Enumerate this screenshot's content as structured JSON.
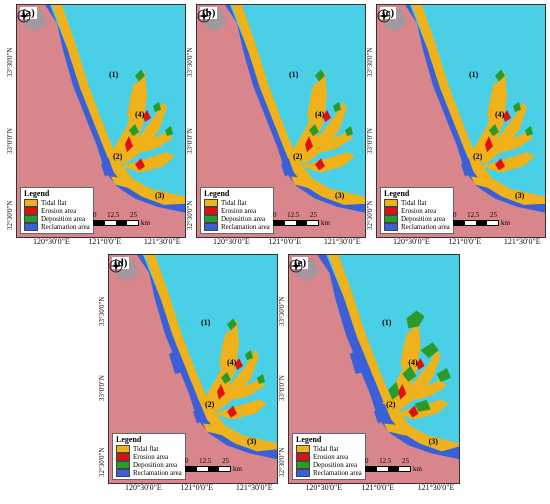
{
  "colors": {
    "land": "#d9858c",
    "sea": "#49d0e6",
    "tidal_flat": "#f0b21a",
    "erosion": "#e01010",
    "deposition": "#2a9a2a",
    "reclamation": "#3a5fd6",
    "town": "#9a9aa0"
  },
  "panels": [
    {
      "letter": "(a)",
      "variant": "a"
    },
    {
      "letter": "(b)",
      "variant": "b"
    },
    {
      "letter": "(c)",
      "variant": "c"
    },
    {
      "letter": "(d)",
      "variant": "d"
    },
    {
      "letter": "(e)",
      "variant": "e"
    }
  ],
  "legend": {
    "title": "Legend",
    "items": [
      {
        "label": "Tidal flat",
        "color": "#f0b21a"
      },
      {
        "label": "Erosion area",
        "color": "#e01010"
      },
      {
        "label": "Deposition area",
        "color": "#2a9a2a"
      },
      {
        "label": "Reclamation area",
        "color": "#3a5fd6"
      }
    ]
  },
  "scale": {
    "n0": "0",
    "n1": "12.5",
    "n2": "25",
    "unit": "km"
  },
  "xticks": [
    "120°30'0\"E",
    "121°0'0\"E",
    "121°30'0\"E"
  ],
  "yticks": [
    "33°30'0\"N",
    "33°0'0\"N",
    "32°30'0\"N"
  ],
  "subareas": [
    "(1)",
    "(2)",
    "(3)",
    "(4)"
  ],
  "compass_icon": "north-arrow-compass-icon"
}
